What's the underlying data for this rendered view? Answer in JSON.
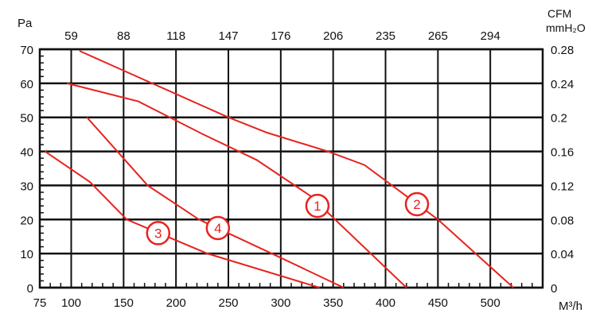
{
  "chart_data": {
    "type": "line",
    "xlabel": "M³/h",
    "ylabel_left": "Pa",
    "ylabel_right": "mmH₂O",
    "xlabel_top": "CFM",
    "xlim": [
      70,
      550
    ],
    "ylim": [
      0,
      70
    ],
    "grid": true,
    "x_ticks": [
      75,
      100,
      150,
      200,
      250,
      300,
      350,
      400,
      450,
      500
    ],
    "y_ticks": [
      0,
      10,
      20,
      30,
      40,
      50,
      60,
      70
    ],
    "top_ticks": [
      {
        "at": 100,
        "label": "59"
      },
      {
        "at": 150,
        "label": "88"
      },
      {
        "at": 200,
        "label": "118"
      },
      {
        "at": 250,
        "label": "147"
      },
      {
        "at": 300,
        "label": "176"
      },
      {
        "at": 350,
        "label": "206"
      },
      {
        "at": 400,
        "label": "235"
      },
      {
        "at": 450,
        "label": "265"
      },
      {
        "at": 500,
        "label": "294"
      }
    ],
    "right_ticks": [
      {
        "at": 0,
        "label": "0"
      },
      {
        "at": 10,
        "label": "0.04"
      },
      {
        "at": 20,
        "label": "0.08"
      },
      {
        "at": 30,
        "label": "0.12"
      },
      {
        "at": 40,
        "label": "0.16"
      },
      {
        "at": 50,
        "label": "0.2"
      },
      {
        "at": 60,
        "label": "0.24"
      },
      {
        "at": 70,
        "label": "0.28"
      }
    ],
    "line_color": "#e8231e",
    "series": [
      {
        "name": "1",
        "label_at": [
          335,
          24
        ],
        "points": [
          [
            96,
            60
          ],
          [
            164,
            54.7
          ],
          [
            226,
            45
          ],
          [
            277,
            37.5
          ],
          [
            328,
            27
          ],
          [
            420,
            0
          ]
        ]
      },
      {
        "name": "2",
        "label_at": [
          430,
          24.5
        ],
        "points": [
          [
            108,
            69.5
          ],
          [
            250,
            50
          ],
          [
            287,
            45.5
          ],
          [
            345,
            40
          ],
          [
            380,
            36
          ],
          [
            450,
            20
          ],
          [
            522,
            0
          ]
        ]
      },
      {
        "name": "3",
        "label_at": [
          183,
          16
        ],
        "points": [
          [
            75,
            40
          ],
          [
            118,
            31
          ],
          [
            153,
            20
          ],
          [
            230,
            10
          ],
          [
            337,
            0
          ]
        ]
      },
      {
        "name": "4",
        "label_at": [
          240,
          17.5
        ],
        "points": [
          [
            115,
            50
          ],
          [
            173,
            30
          ],
          [
            222,
            20
          ],
          [
            295,
            9.5
          ],
          [
            360,
            0
          ]
        ]
      }
    ]
  }
}
